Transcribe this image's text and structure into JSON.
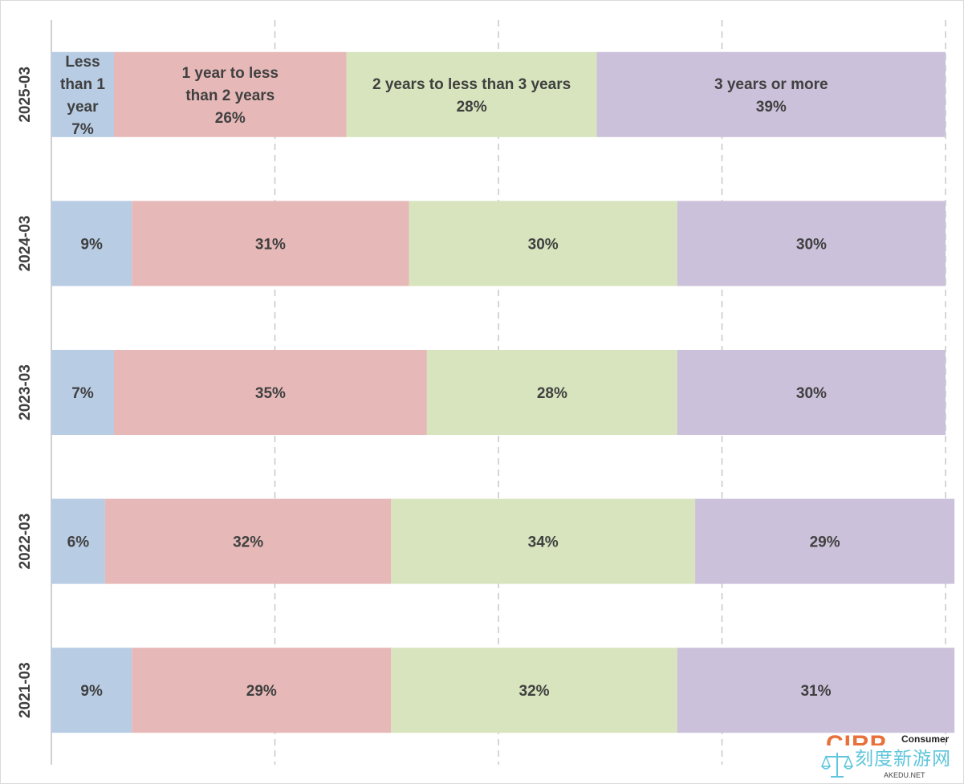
{
  "chart_data": {
    "type": "bar",
    "orientation": "horizontal",
    "stacked": true,
    "percent_stacked": true,
    "title": "",
    "xlabel": "",
    "ylabel": "",
    "xlim": [
      0,
      100
    ],
    "grid": "vertical-dashed",
    "legend": "none",
    "categories": [
      "2025-03",
      "2024-03",
      "2023-03",
      "2022-03",
      "2021-03"
    ],
    "series": [
      {
        "name": "Less than 1 year",
        "label_lines": [
          "Less",
          "than 1",
          "year"
        ],
        "color": "#b8cce4",
        "values": [
          7,
          9,
          7,
          6,
          9
        ]
      },
      {
        "name": "1 year to less than 2 years",
        "label_lines": [
          "1 year to less",
          "than 2 years"
        ],
        "color": "#e6b9b8",
        "values": [
          26,
          31,
          35,
          32,
          29
        ]
      },
      {
        "name": "2 years to less than 3 years",
        "label_lines": [
          "2 years to less than 3 years"
        ],
        "color": "#d7e4bd",
        "values": [
          28,
          30,
          28,
          34,
          32
        ]
      },
      {
        "name": "3 years or more",
        "label_lines": [
          "3 years or more"
        ],
        "color": "#ccc1da",
        "values": [
          39,
          30,
          30,
          29,
          31
        ]
      }
    ],
    "data_labels": [
      [
        "7%",
        "26%",
        "28%",
        "39%"
      ],
      [
        "9%",
        "31%",
        "30%",
        "30%"
      ],
      [
        "7%",
        "35%",
        "28%",
        "30%"
      ],
      [
        "6%",
        "32%",
        "34%",
        "29%"
      ],
      [
        "9%",
        "29%",
        "32%",
        "31%"
      ]
    ],
    "series_names_on_category_index": 0
  },
  "watermark": {
    "brand": "CIRP",
    "consumer": "Consumer",
    "cn_text": "刻度新游网",
    "site": "AKEDU.NET",
    "icon": "scale-icon"
  }
}
